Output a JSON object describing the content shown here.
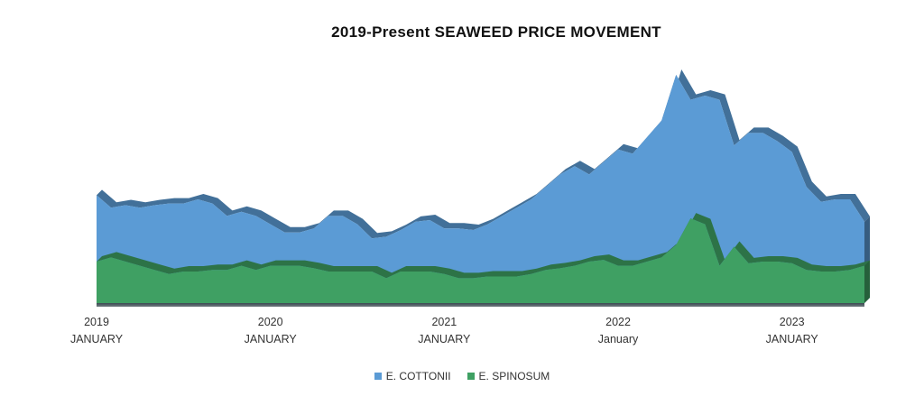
{
  "chart_data": {
    "type": "area",
    "title": "2019-Present SEAWEED PRICE MOVEMENT",
    "xlabel": "",
    "ylabel": "",
    "x_ticks": [
      {
        "year": "2019",
        "label": "JANUARY"
      },
      {
        "year": "2020",
        "label": "JANUARY"
      },
      {
        "year": "2021",
        "label": "JANUARY"
      },
      {
        "year": "2022",
        "label": "January"
      },
      {
        "year": "2023",
        "label": "JANUARY"
      }
    ],
    "x_start": "2019-01",
    "x_end": "2023-08",
    "y_axis_shown": false,
    "grid": false,
    "legend_position": "bottom-center",
    "series": [
      {
        "name": "E. COTTONII",
        "color": "#5B9BD5",
        "values": [
          1.3,
          1.15,
          1.18,
          1.15,
          1.18,
          1.2,
          1.2,
          1.25,
          1.2,
          1.05,
          1.1,
          1.05,
          0.95,
          0.85,
          0.85,
          0.9,
          1.05,
          1.05,
          0.95,
          0.78,
          0.8,
          0.88,
          0.98,
          1.0,
          0.9,
          0.9,
          0.88,
          0.95,
          1.05,
          1.15,
          1.25,
          1.4,
          1.55,
          1.65,
          1.55,
          1.7,
          1.85,
          1.8,
          2.0,
          2.2,
          2.75,
          2.45,
          2.5,
          2.45,
          1.9,
          2.05,
          2.05,
          1.95,
          1.82,
          1.4,
          1.22,
          1.25,
          1.25,
          0.98
        ]
      },
      {
        "name": "E. SPINOSUM",
        "color": "#3FA063",
        "values": [
          0.5,
          0.55,
          0.5,
          0.45,
          0.4,
          0.35,
          0.38,
          0.38,
          0.4,
          0.4,
          0.45,
          0.4,
          0.45,
          0.45,
          0.45,
          0.42,
          0.38,
          0.38,
          0.38,
          0.38,
          0.3,
          0.38,
          0.38,
          0.38,
          0.35,
          0.3,
          0.3,
          0.32,
          0.32,
          0.32,
          0.35,
          0.4,
          0.42,
          0.45,
          0.5,
          0.52,
          0.45,
          0.45,
          0.5,
          0.55,
          0.7,
          1.02,
          0.95,
          0.45,
          0.68,
          0.48,
          0.5,
          0.5,
          0.48,
          0.4,
          0.38,
          0.38,
          0.4,
          0.45
        ]
      }
    ]
  }
}
